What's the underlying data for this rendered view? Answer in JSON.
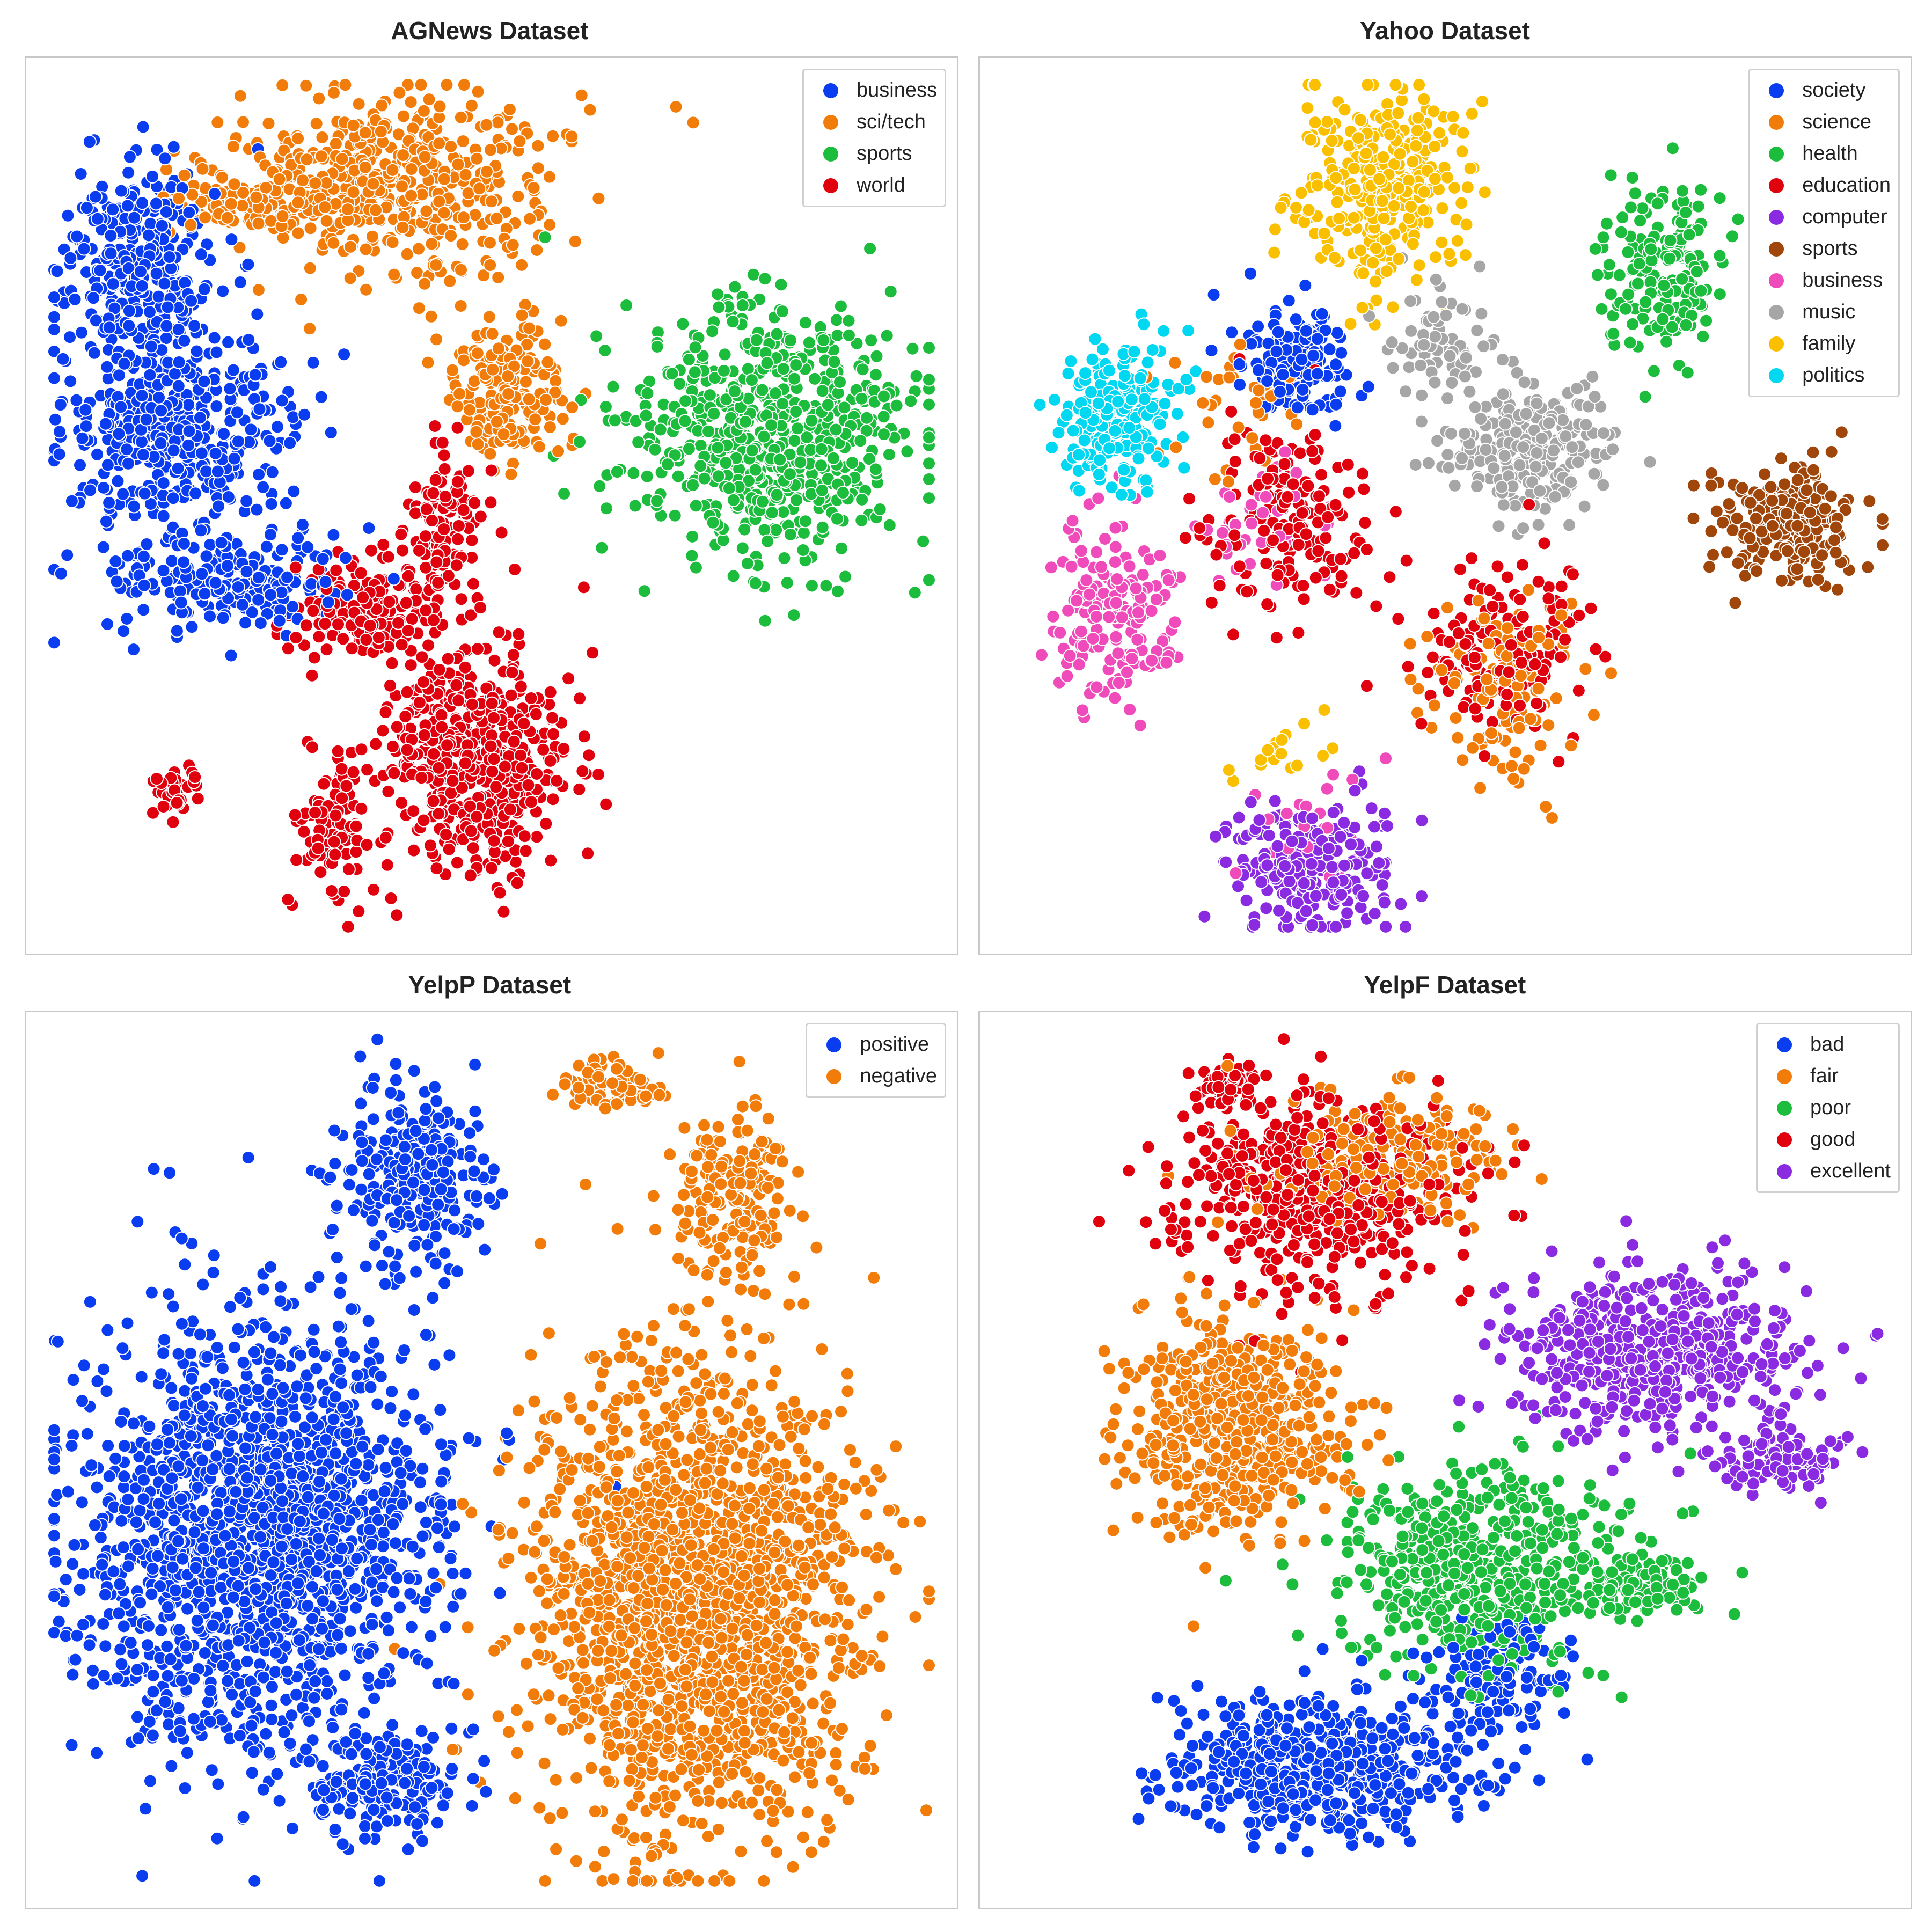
{
  "chart_data": [
    {
      "type": "scatter",
      "title": "AGNews Dataset",
      "legend_position": "top-right",
      "grid": false,
      "series": [
        {
          "name": "business",
          "color": "#0a3cf0",
          "clusters": [
            [
              0.16,
              0.42,
              0.11,
              0.09,
              900
            ],
            [
              0.12,
              0.24,
              0.08,
              0.12,
              700
            ],
            [
              0.22,
              0.58,
              0.12,
              0.05,
              500
            ]
          ]
        },
        {
          "name": "sci/tech",
          "color": "#f27c0a",
          "clusters": [
            [
              0.4,
              0.14,
              0.16,
              0.09,
              1000
            ],
            [
              0.52,
              0.37,
              0.06,
              0.07,
              400
            ],
            [
              0.25,
              0.16,
              0.09,
              0.04,
              250
            ]
          ]
        },
        {
          "name": "sports",
          "color": "#1cbd3c",
          "clusters": [
            [
              0.8,
              0.42,
              0.14,
              0.13,
              1500
            ]
          ]
        },
        {
          "name": "world",
          "color": "#e0000e",
          "clusters": [
            [
              0.48,
              0.78,
              0.09,
              0.11,
              1200
            ],
            [
              0.36,
              0.62,
              0.07,
              0.05,
              350
            ],
            [
              0.45,
              0.52,
              0.04,
              0.08,
              250
            ],
            [
              0.33,
              0.86,
              0.04,
              0.08,
              220
            ],
            [
              0.16,
              0.82,
              0.025,
              0.02,
              80
            ]
          ]
        }
      ]
    },
    {
      "type": "scatter",
      "title": "Yahoo Dataset",
      "legend_position": "top-right",
      "grid": false,
      "series": [
        {
          "name": "society",
          "color": "#0a3cf0",
          "clusters": [
            [
              0.34,
              0.34,
              0.05,
              0.06,
              350
            ]
          ]
        },
        {
          "name": "science",
          "color": "#f27c0a",
          "clusters": [
            [
              0.56,
              0.7,
              0.08,
              0.1,
              300
            ],
            [
              0.28,
              0.4,
              0.06,
              0.08,
              90
            ]
          ]
        },
        {
          "name": "health",
          "color": "#1cbd3c",
          "clusters": [
            [
              0.73,
              0.24,
              0.06,
              0.08,
              400
            ]
          ]
        },
        {
          "name": "education",
          "color": "#e0000e",
          "clusters": [
            [
              0.33,
              0.51,
              0.08,
              0.1,
              400
            ],
            [
              0.56,
              0.66,
              0.08,
              0.08,
              350
            ]
          ]
        },
        {
          "name": "computer",
          "color": "#8a2be2",
          "clusters": [
            [
              0.36,
              0.9,
              0.09,
              0.07,
              500
            ]
          ]
        },
        {
          "name": "sports",
          "color": "#a0460a",
          "clusters": [
            [
              0.87,
              0.52,
              0.07,
              0.06,
              500
            ]
          ]
        },
        {
          "name": "business",
          "color": "#f04bbb",
          "clusters": [
            [
              0.14,
              0.62,
              0.06,
              0.09,
              400
            ],
            [
              0.36,
              0.86,
              0.06,
              0.06,
              60
            ],
            [
              0.3,
              0.52,
              0.06,
              0.06,
              120
            ]
          ]
        },
        {
          "name": "music",
          "color": "#a6a6a6",
          "clusters": [
            [
              0.59,
              0.44,
              0.08,
              0.06,
              550
            ],
            [
              0.5,
              0.32,
              0.06,
              0.06,
              150
            ]
          ]
        },
        {
          "name": "family",
          "color": "#fac000",
          "clusters": [
            [
              0.43,
              0.14,
              0.08,
              0.1,
              700
            ],
            [
              0.32,
              0.78,
              0.05,
              0.04,
              40
            ]
          ]
        },
        {
          "name": "politics",
          "color": "#00d7f0",
          "clusters": [
            [
              0.15,
              0.4,
              0.06,
              0.08,
              450
            ]
          ]
        }
      ]
    },
    {
      "type": "scatter",
      "title": "YelpP Dataset",
      "legend_position": "top-right",
      "grid": false,
      "series": [
        {
          "name": "positive",
          "color": "#0a3cf0",
          "clusters": [
            [
              0.25,
              0.58,
              0.17,
              0.22,
              4000
            ],
            [
              0.42,
              0.18,
              0.07,
              0.1,
              600
            ],
            [
              0.38,
              0.86,
              0.08,
              0.05,
              400
            ]
          ]
        },
        {
          "name": "negative",
          "color": "#f27c0a",
          "clusters": [
            [
              0.72,
              0.66,
              0.16,
              0.24,
              4000
            ],
            [
              0.76,
              0.2,
              0.06,
              0.1,
              400
            ],
            [
              0.63,
              0.08,
              0.06,
              0.03,
              150
            ]
          ]
        }
      ]
    },
    {
      "type": "scatter",
      "title": "YelpF Dataset",
      "legend_position": "top-right",
      "grid": false,
      "series": [
        {
          "name": "bad",
          "color": "#0a3cf0",
          "clusters": [
            [
              0.36,
              0.84,
              0.14,
              0.07,
              1200
            ],
            [
              0.55,
              0.74,
              0.08,
              0.08,
              300
            ]
          ]
        },
        {
          "name": "fair",
          "color": "#f27c0a",
          "clusters": [
            [
              0.27,
              0.46,
              0.11,
              0.11,
              1200
            ],
            [
              0.44,
              0.16,
              0.12,
              0.06,
              500
            ]
          ]
        },
        {
          "name": "poor",
          "color": "#1cbd3c",
          "clusters": [
            [
              0.54,
              0.62,
              0.14,
              0.1,
              1100
            ],
            [
              0.72,
              0.64,
              0.06,
              0.03,
              200
            ]
          ]
        },
        {
          "name": "good",
          "color": "#e0000e",
          "clusters": [
            [
              0.36,
              0.2,
              0.14,
              0.1,
              1100
            ],
            [
              0.26,
              0.08,
              0.03,
              0.03,
              120
            ]
          ]
        },
        {
          "name": "excellent",
          "color": "#8a2be2",
          "clusters": [
            [
              0.72,
              0.38,
              0.14,
              0.08,
              1200
            ],
            [
              0.86,
              0.5,
              0.06,
              0.03,
              250
            ]
          ]
        }
      ]
    }
  ]
}
